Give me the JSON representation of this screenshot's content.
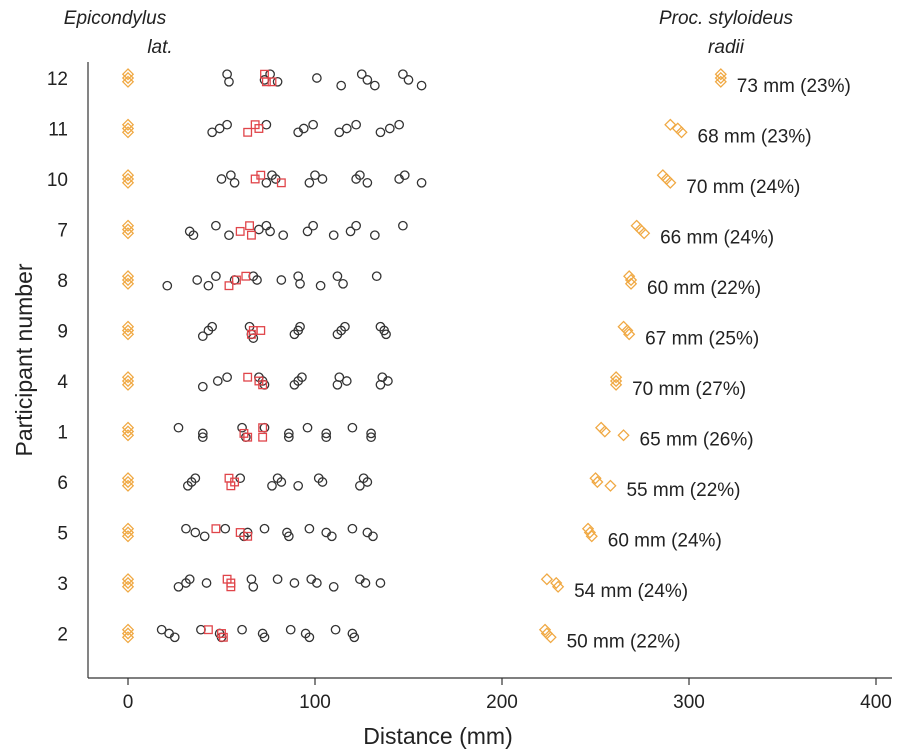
{
  "chart_data": {
    "type": "scatter",
    "title": "",
    "xlabel": "Distance (mm)",
    "ylabel": "Participant number",
    "xlim": [
      -20,
      405
    ],
    "xticks": [
      0,
      100,
      200,
      300,
      400
    ],
    "grid": false,
    "landmark_left": {
      "line1": "Epicondylus",
      "line2": "lat."
    },
    "landmark_right": {
      "line1": "Proc. styloideus",
      "line2": "radii"
    },
    "colors": {
      "circle": "#333333",
      "square": "#e0454a",
      "diamond": "#f0a944"
    },
    "participants": [
      {
        "label": "12",
        "annotation": "73 mm (23%)",
        "circles": [
          [
            53,
            -2
          ],
          [
            54,
            2
          ],
          [
            73,
            1
          ],
          [
            76,
            -2
          ],
          [
            80,
            2
          ],
          [
            101,
            0
          ],
          [
            114,
            4
          ],
          [
            125,
            -2
          ],
          [
            128,
            1
          ],
          [
            132,
            4
          ],
          [
            147,
            -2
          ],
          [
            150,
            1
          ],
          [
            157,
            4
          ]
        ],
        "squares": [
          [
            73,
            -2
          ],
          [
            74,
            2
          ],
          [
            77,
            2
          ]
        ],
        "diamonds": [
          [
            0,
            -2
          ],
          [
            0,
            0
          ],
          [
            0,
            2
          ],
          [
            317,
            -2
          ],
          [
            317,
            0
          ],
          [
            317,
            2
          ]
        ]
      },
      {
        "label": "11",
        "annotation": "68 mm (23%)",
        "circles": [
          [
            45,
            2
          ],
          [
            49,
            0
          ],
          [
            53,
            -2
          ],
          [
            74,
            -2
          ],
          [
            91,
            2
          ],
          [
            94,
            0
          ],
          [
            99,
            -2
          ],
          [
            113,
            2
          ],
          [
            117,
            0
          ],
          [
            122,
            -2
          ],
          [
            135,
            2
          ],
          [
            140,
            0
          ],
          [
            145,
            -2
          ]
        ],
        "squares": [
          [
            64,
            2
          ],
          [
            68,
            -2
          ],
          [
            70,
            0
          ]
        ],
        "diamonds": [
          [
            0,
            -2
          ],
          [
            0,
            0
          ],
          [
            0,
            2
          ],
          [
            290,
            -2
          ],
          [
            294,
            0
          ],
          [
            296,
            2
          ]
        ]
      },
      {
        "label": "10",
        "annotation": "70 mm (24%)",
        "circles": [
          [
            50,
            0
          ],
          [
            55,
            -2
          ],
          [
            57,
            2
          ],
          [
            74,
            2
          ],
          [
            77,
            -2
          ],
          [
            79,
            0
          ],
          [
            97,
            2
          ],
          [
            100,
            -2
          ],
          [
            104,
            0
          ],
          [
            122,
            0
          ],
          [
            124,
            -2
          ],
          [
            128,
            2
          ],
          [
            145,
            0
          ],
          [
            148,
            -2
          ],
          [
            157,
            2
          ]
        ],
        "squares": [
          [
            68,
            0
          ],
          [
            71,
            -2
          ],
          [
            82,
            2
          ]
        ],
        "diamonds": [
          [
            0,
            -2
          ],
          [
            0,
            0
          ],
          [
            0,
            2
          ],
          [
            286,
            -2
          ],
          [
            288,
            0
          ],
          [
            290,
            2
          ]
        ]
      },
      {
        "label": "7",
        "annotation": "66 mm (24%)",
        "circles": [
          [
            33,
            1
          ],
          [
            35,
            3
          ],
          [
            47,
            -2
          ],
          [
            54,
            3
          ],
          [
            70,
            0
          ],
          [
            74,
            -2
          ],
          [
            76,
            1
          ],
          [
            83,
            3
          ],
          [
            96,
            1
          ],
          [
            99,
            -2
          ],
          [
            110,
            3
          ],
          [
            119,
            1
          ],
          [
            122,
            -2
          ],
          [
            132,
            3
          ],
          [
            147,
            -2
          ]
        ],
        "squares": [
          [
            60,
            1
          ],
          [
            65,
            -2
          ],
          [
            66,
            3
          ]
        ],
        "diamonds": [
          [
            0,
            -2
          ],
          [
            0,
            0
          ],
          [
            0,
            2
          ],
          [
            272,
            -2
          ],
          [
            274,
            0
          ],
          [
            276,
            2
          ]
        ]
      },
      {
        "label": "8",
        "annotation": "60 mm (22%)",
        "circles": [
          [
            21,
            3
          ],
          [
            37,
            0
          ],
          [
            43,
            3
          ],
          [
            47,
            -2
          ],
          [
            57,
            0
          ],
          [
            67,
            -2
          ],
          [
            69,
            0
          ],
          [
            82,
            0
          ],
          [
            91,
            -2
          ],
          [
            92,
            2
          ],
          [
            103,
            3
          ],
          [
            112,
            -2
          ],
          [
            115,
            2
          ],
          [
            133,
            -2
          ]
        ],
        "squares": [
          [
            54,
            3
          ],
          [
            58,
            0
          ],
          [
            63,
            -2
          ]
        ],
        "diamonds": [
          [
            0,
            -2
          ],
          [
            0,
            0
          ],
          [
            0,
            2
          ],
          [
            268,
            -2
          ],
          [
            269,
            0
          ],
          [
            269,
            2
          ]
        ]
      },
      {
        "label": "9",
        "annotation": "67 mm (25%)",
        "circles": [
          [
            40,
            3
          ],
          [
            43,
            0
          ],
          [
            45,
            -2
          ],
          [
            65,
            -2
          ],
          [
            66,
            2
          ],
          [
            67,
            4
          ],
          [
            89,
            2
          ],
          [
            91,
            0
          ],
          [
            92,
            -2
          ],
          [
            112,
            2
          ],
          [
            114,
            0
          ],
          [
            116,
            -2
          ],
          [
            135,
            -2
          ],
          [
            137,
            0
          ],
          [
            138,
            2
          ]
        ],
        "squares": [
          [
            66,
            2
          ],
          [
            67,
            0
          ],
          [
            71,
            0
          ]
        ],
        "diamonds": [
          [
            0,
            -2
          ],
          [
            0,
            0
          ],
          [
            0,
            2
          ],
          [
            265,
            -2
          ],
          [
            267,
            0
          ],
          [
            268,
            2
          ]
        ]
      },
      {
        "label": "4",
        "annotation": "70 mm (27%)",
        "circles": [
          [
            40,
            3
          ],
          [
            48,
            0
          ],
          [
            53,
            -2
          ],
          [
            70,
            -2
          ],
          [
            72,
            0
          ],
          [
            73,
            2
          ],
          [
            89,
            2
          ],
          [
            91,
            0
          ],
          [
            93,
            -2
          ],
          [
            112,
            2
          ],
          [
            113,
            -2
          ],
          [
            117,
            0
          ],
          [
            135,
            2
          ],
          [
            136,
            -2
          ],
          [
            139,
            0
          ]
        ],
        "squares": [
          [
            64,
            -2
          ],
          [
            70,
            0
          ],
          [
            72,
            2
          ]
        ],
        "diamonds": [
          [
            0,
            -2
          ],
          [
            0,
            0
          ],
          [
            0,
            2
          ],
          [
            261,
            -2
          ],
          [
            261,
            0
          ],
          [
            261,
            2
          ]
        ]
      },
      {
        "label": "1",
        "annotation": "65 mm (26%)",
        "circles": [
          [
            27,
            -2
          ],
          [
            40,
            1
          ],
          [
            40,
            3
          ],
          [
            61,
            -2
          ],
          [
            63,
            3
          ],
          [
            73,
            -2
          ],
          [
            86,
            1
          ],
          [
            86,
            3
          ],
          [
            96,
            -2
          ],
          [
            106,
            1
          ],
          [
            106,
            3
          ],
          [
            120,
            -2
          ],
          [
            130,
            1
          ],
          [
            130,
            3
          ]
        ],
        "squares": [
          [
            62,
            1
          ],
          [
            64,
            3
          ],
          [
            72,
            -2
          ],
          [
            72,
            3
          ]
        ],
        "diamonds": [
          [
            0,
            -2
          ],
          [
            0,
            0
          ],
          [
            0,
            2
          ],
          [
            253,
            -2
          ],
          [
            255,
            0
          ],
          [
            265,
            2
          ]
        ]
      },
      {
        "label": "6",
        "annotation": "55 mm (22%)",
        "circles": [
          [
            32,
            2
          ],
          [
            34,
            0
          ],
          [
            36,
            -2
          ],
          [
            60,
            -2
          ],
          [
            77,
            2
          ],
          [
            80,
            -2
          ],
          [
            82,
            0
          ],
          [
            91,
            2
          ],
          [
            102,
            -2
          ],
          [
            104,
            0
          ],
          [
            124,
            2
          ],
          [
            126,
            -2
          ],
          [
            128,
            0
          ]
        ],
        "squares": [
          [
            54,
            -2
          ],
          [
            55,
            2
          ],
          [
            57,
            0
          ]
        ],
        "diamonds": [
          [
            0,
            -2
          ],
          [
            0,
            0
          ],
          [
            0,
            2
          ],
          [
            250,
            -2
          ],
          [
            251,
            0
          ],
          [
            258,
            2
          ]
        ]
      },
      {
        "label": "5",
        "annotation": "60 mm (24%)",
        "circles": [
          [
            31,
            -2
          ],
          [
            36,
            0
          ],
          [
            41,
            2
          ],
          [
            52,
            -2
          ],
          [
            62,
            2
          ],
          [
            64,
            0
          ],
          [
            73,
            -2
          ],
          [
            85,
            0
          ],
          [
            86,
            2
          ],
          [
            97,
            -2
          ],
          [
            106,
            0
          ],
          [
            109,
            2
          ],
          [
            120,
            -2
          ],
          [
            128,
            0
          ],
          [
            131,
            2
          ]
        ],
        "squares": [
          [
            47,
            -2
          ],
          [
            60,
            0
          ],
          [
            64,
            2
          ]
        ],
        "diamonds": [
          [
            0,
            -2
          ],
          [
            0,
            0
          ],
          [
            0,
            2
          ],
          [
            246,
            -2
          ],
          [
            247,
            0
          ],
          [
            248,
            2
          ]
        ]
      },
      {
        "label": "3",
        "annotation": "54 mm (24%)",
        "circles": [
          [
            27,
            2
          ],
          [
            31,
            0
          ],
          [
            33,
            -2
          ],
          [
            42,
            0
          ],
          [
            66,
            -2
          ],
          [
            67,
            2
          ],
          [
            80,
            -2
          ],
          [
            89,
            0
          ],
          [
            98,
            -2
          ],
          [
            101,
            0
          ],
          [
            110,
            2
          ],
          [
            124,
            -2
          ],
          [
            127,
            0
          ],
          [
            135,
            0
          ]
        ],
        "squares": [
          [
            53,
            -2
          ],
          [
            55,
            0
          ],
          [
            55,
            2
          ]
        ],
        "diamonds": [
          [
            0,
            -2
          ],
          [
            0,
            0
          ],
          [
            0,
            2
          ],
          [
            224,
            -2
          ],
          [
            229,
            0
          ],
          [
            230,
            2
          ]
        ]
      },
      {
        "label": "2",
        "annotation": "50 mm (22%)",
        "circles": [
          [
            18,
            -2
          ],
          [
            22,
            0
          ],
          [
            25,
            2
          ],
          [
            39,
            -2
          ],
          [
            49,
            0
          ],
          [
            50,
            2
          ],
          [
            61,
            -2
          ],
          [
            72,
            0
          ],
          [
            73,
            2
          ],
          [
            87,
            -2
          ],
          [
            95,
            0
          ],
          [
            97,
            2
          ],
          [
            111,
            -2
          ],
          [
            120,
            0
          ],
          [
            121,
            2
          ]
        ],
        "squares": [
          [
            43,
            -2
          ],
          [
            50,
            0
          ],
          [
            51,
            2
          ]
        ],
        "diamonds": [
          [
            0,
            -2
          ],
          [
            0,
            0
          ],
          [
            0,
            2
          ],
          [
            223,
            -2
          ],
          [
            224,
            0
          ],
          [
            226,
            2
          ]
        ]
      }
    ]
  }
}
